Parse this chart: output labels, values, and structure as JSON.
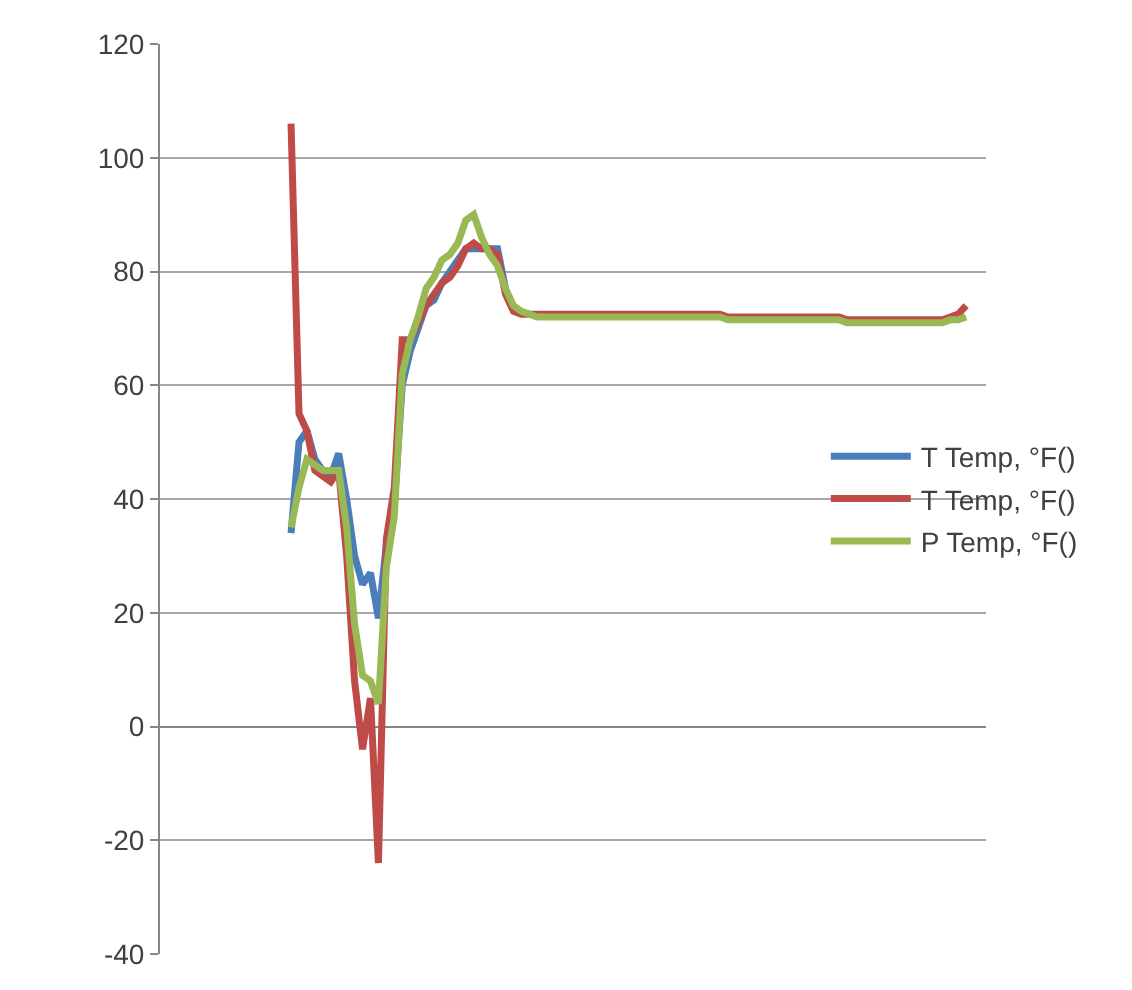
{
  "chart_data": {
    "type": "line",
    "categories": [
      null,
      null,
      null,
      null,
      null,
      null,
      null,
      null,
      null,
      null,
      null,
      null,
      null,
      null,
      null,
      null,
      null,
      null,
      null,
      null,
      null,
      null,
      null,
      null,
      null,
      null,
      null,
      null,
      null,
      null,
      null,
      null,
      null,
      null,
      null,
      null,
      null,
      null,
      null,
      null,
      null,
      null,
      null,
      null,
      null,
      null,
      null,
      null,
      null,
      null,
      null,
      null,
      null,
      null,
      null,
      null,
      null,
      null,
      null,
      null,
      null,
      null,
      null,
      null,
      null,
      null,
      null,
      null,
      null,
      null,
      null,
      null,
      null,
      null,
      null,
      null,
      null,
      null,
      null,
      null,
      null,
      null,
      null,
      null,
      null,
      null
    ],
    "series": [
      {
        "name": "T Temp, °F()",
        "color": "#4a7ebb",
        "values": [
          34,
          50,
          52,
          47,
          45,
          44,
          48,
          40,
          30,
          25,
          27,
          19,
          32,
          39,
          60,
          66,
          70,
          74,
          75,
          78,
          80,
          82,
          84,
          84,
          84,
          84,
          84,
          77,
          null,
          null,
          null,
          null,
          null,
          null,
          null,
          null,
          null,
          null,
          null,
          null,
          null,
          null,
          null,
          null,
          null,
          null,
          null,
          null,
          null,
          null,
          null,
          null,
          null,
          null,
          null,
          null,
          null,
          null,
          null,
          null,
          null,
          null,
          null,
          null,
          null,
          null,
          null,
          null,
          null,
          null,
          null,
          null,
          null,
          null,
          null,
          null,
          null,
          null,
          null,
          null,
          null,
          null,
          null,
          null,
          null,
          null
        ]
      },
      {
        "name": "T Temp, °F()",
        "color": "#be4b48",
        "values": [
          106,
          55,
          52,
          45,
          44,
          43,
          45,
          30,
          8,
          -4,
          5,
          -24,
          33,
          42,
          68,
          68,
          71,
          74,
          76,
          78,
          79,
          81,
          84,
          85,
          84,
          84,
          83,
          76,
          73,
          72.5,
          72.5,
          72.5,
          72.5,
          72.5,
          72.5,
          72.5,
          72.5,
          72.5,
          72.5,
          72.5,
          72.5,
          72.5,
          72.5,
          72.5,
          72.5,
          72.5,
          72.5,
          72.5,
          72.5,
          72.5,
          72.5,
          72.5,
          72.5,
          72.5,
          72.5,
          72,
          72,
          72,
          72,
          72,
          72,
          72,
          72,
          72,
          72,
          72,
          72,
          72,
          72,
          72,
          71.5,
          71.5,
          71.5,
          71.5,
          71.5,
          71.5,
          71.5,
          71.5,
          71.5,
          71.5,
          71.5,
          71.5,
          71.5,
          72,
          72.5,
          74
        ]
      },
      {
        "name": "P Temp, °F()",
        "color": "#98b954",
        "values": [
          35,
          42,
          47,
          46,
          45,
          45,
          45,
          35,
          18,
          9,
          8,
          4,
          28,
          37,
          62,
          68,
          72,
          77,
          79,
          82,
          83,
          85,
          89,
          90,
          86,
          83,
          81,
          77,
          74,
          73,
          72.5,
          72,
          72,
          72,
          72,
          72,
          72,
          72,
          72,
          72,
          72,
          72,
          72,
          72,
          72,
          72,
          72,
          72,
          72,
          72,
          72,
          72,
          72,
          72,
          72,
          71.5,
          71.5,
          71.5,
          71.5,
          71.5,
          71.5,
          71.5,
          71.5,
          71.5,
          71.5,
          71.5,
          71.5,
          71.5,
          71.5,
          71.5,
          71,
          71,
          71,
          71,
          71,
          71,
          71,
          71,
          71,
          71,
          71,
          71,
          71,
          71.5,
          71.5,
          72
        ]
      }
    ],
    "ylim": [
      -40,
      120
    ],
    "yticks": [
      -40,
      -20,
      0,
      20,
      40,
      60,
      80,
      100,
      120
    ],
    "grid": "y",
    "legend": "right",
    "tick_labels": "y",
    "marker": "none",
    "line_style": "solid"
  }
}
